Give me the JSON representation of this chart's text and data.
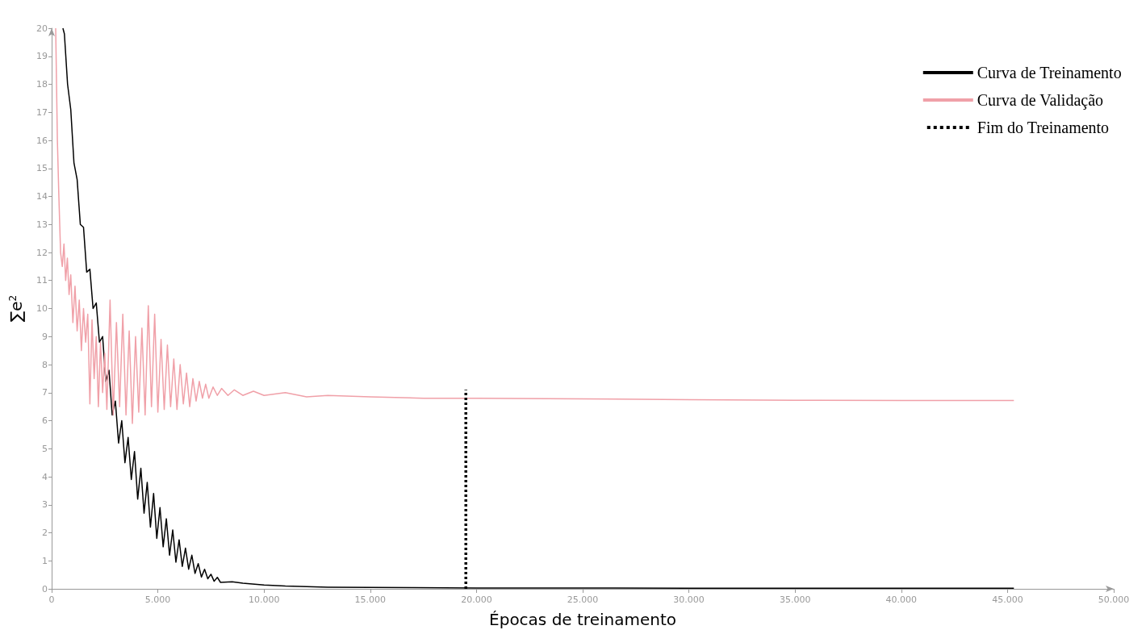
{
  "chart_data": {
    "type": "line",
    "xlabel": "Épocas de treinamento",
    "ylabel": "∑e$^{2}$",
    "xlim": [
      0,
      50000
    ],
    "xticks": [
      0,
      {
        "value": 5000,
        "label": "5.000"
      },
      {
        "value": 10000,
        "label": "10.000"
      },
      {
        "value": 15000,
        "label": "15.000"
      },
      {
        "value": 20000,
        "label": "20.000"
      },
      {
        "value": 25000,
        "label": "25.000"
      },
      {
        "value": 30000,
        "label": "30.000"
      },
      {
        "value": 35000,
        "label": "35.000"
      },
      {
        "value": 40000,
        "label": "40.000"
      },
      {
        "value": 45000,
        "label": "45.000"
      },
      {
        "value": 50000,
        "label": "50.000"
      }
    ],
    "ylim": [
      0,
      20
    ],
    "yticks": [
      0,
      1,
      2,
      3,
      4,
      5,
      6,
      7,
      8,
      9,
      10,
      11,
      12,
      13,
      14,
      15,
      16,
      17,
      18,
      19,
      20
    ],
    "grid": false,
    "legend": "top right",
    "marker": "none",
    "series": [
      {
        "name": "Curva de Treinamento",
        "color": "#000000",
        "line_style": "solid",
        "x": [
          530,
          600,
          750,
          900,
          1050,
          1200,
          1350,
          1500,
          1650,
          1800,
          1950,
          2100,
          2250,
          2400,
          2550,
          2700,
          2850,
          3000,
          3150,
          3300,
          3450,
          3600,
          3750,
          3900,
          4050,
          4200,
          4350,
          4500,
          4650,
          4800,
          4950,
          5100,
          5250,
          5400,
          5550,
          5700,
          5850,
          6000,
          6150,
          6300,
          6450,
          6600,
          6750,
          6900,
          7050,
          7200,
          7350,
          7500,
          7650,
          7800,
          7950,
          8500,
          9000,
          10000,
          11000,
          12000,
          13000,
          15000,
          17000,
          20000,
          25000,
          30000,
          45300
        ],
        "values": [
          20,
          19.8,
          18.0,
          17.1,
          15.2,
          14.6,
          13.0,
          12.9,
          11.3,
          11.4,
          10.0,
          10.2,
          8.8,
          9.0,
          7.4,
          7.8,
          6.2,
          6.7,
          5.2,
          6.0,
          4.5,
          5.4,
          3.9,
          4.9,
          3.2,
          4.3,
          2.7,
          3.8,
          2.2,
          3.4,
          1.8,
          2.9,
          1.5,
          2.5,
          1.2,
          2.1,
          0.95,
          1.75,
          0.8,
          1.45,
          0.7,
          1.2,
          0.55,
          0.9,
          0.42,
          0.7,
          0.36,
          0.52,
          0.27,
          0.41,
          0.23,
          0.25,
          0.2,
          0.14,
          0.1,
          0.08,
          0.06,
          0.05,
          0.04,
          0.03,
          0.03,
          0.02,
          0.02
        ]
      },
      {
        "name": "Curva de Validação",
        "color": "#f0a0a8",
        "line_style": "solid",
        "x": [
          190,
          270,
          340,
          420,
          500,
          580,
          660,
          740,
          820,
          900,
          1000,
          1100,
          1200,
          1300,
          1400,
          1500,
          1600,
          1700,
          1800,
          1900,
          2000,
          2100,
          2200,
          2300,
          2400,
          2500,
          2600,
          2750,
          2900,
          3050,
          3200,
          3350,
          3500,
          3650,
          3800,
          3950,
          4100,
          4250,
          4400,
          4550,
          4700,
          4850,
          5000,
          5150,
          5300,
          5450,
          5600,
          5750,
          5900,
          6050,
          6200,
          6350,
          6500,
          6650,
          6800,
          6950,
          7100,
          7250,
          7400,
          7600,
          7800,
          8000,
          8300,
          8600,
          9000,
          9500,
          10000,
          11000,
          12000,
          13000,
          15000,
          17500,
          20000,
          25000,
          30000,
          35000,
          40000,
          45300
        ],
        "values": [
          20,
          16,
          14,
          12,
          11.5,
          12.3,
          11,
          11.8,
          10.5,
          11.2,
          9.5,
          10.8,
          9.2,
          10.3,
          8.5,
          10.0,
          8.8,
          9.8,
          6.6,
          9.6,
          7.5,
          9.0,
          6.5,
          8.8,
          7.0,
          8.4,
          6.4,
          10.3,
          6.2,
          9.5,
          6.5,
          9.8,
          6.2,
          9.2,
          5.9,
          9.0,
          6.3,
          9.3,
          6.2,
          10.1,
          6.5,
          9.8,
          6.3,
          8.9,
          6.4,
          8.7,
          6.5,
          8.2,
          6.4,
          8.0,
          6.6,
          7.7,
          6.5,
          7.5,
          6.7,
          7.4,
          6.8,
          7.3,
          6.8,
          7.2,
          6.9,
          7.15,
          6.9,
          7.1,
          6.9,
          7.05,
          6.9,
          7.0,
          6.85,
          6.9,
          6.85,
          6.8,
          6.8,
          6.78,
          6.75,
          6.73,
          6.72,
          6.72
        ]
      },
      {
        "name": "Fim do Treinamento",
        "color": "#000000",
        "line_style": "dotted",
        "x": [
          19500,
          19500
        ],
        "values": [
          0,
          7.1
        ]
      }
    ]
  }
}
